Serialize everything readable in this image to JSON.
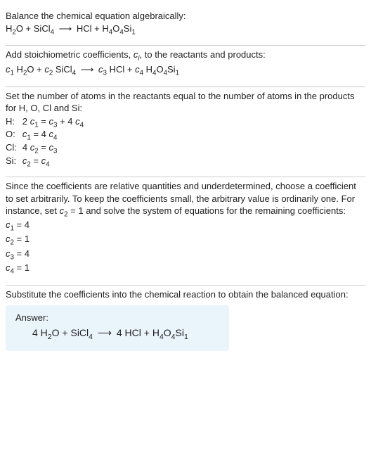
{
  "section1": {
    "title": "Balance the chemical equation algebraically:",
    "equation_html": "H<span class='sub'>2</span>O + SiCl<span class='sub'>4</span> <span class='arrow'>⟶</span> HCl + H<span class='sub'>4</span>O<span class='sub'>4</span>Si<span class='sub'>1</span>"
  },
  "section2": {
    "text_html": "Add stoichiometric coefficients, <span class='ital'>c<span class='sub'>i</span></span>, to the reactants and products:",
    "equation_html": "<span class='ital'>c</span><span class='sub'>1</span> H<span class='sub'>2</span>O + <span class='ital'>c</span><span class='sub'>2</span> SiCl<span class='sub'>4</span> <span class='arrow'>⟶</span> <span class='ital'>c</span><span class='sub'>3</span> HCl + <span class='ital'>c</span><span class='sub'>4</span> H<span class='sub'>4</span>O<span class='sub'>4</span>Si<span class='sub'>1</span>"
  },
  "section3": {
    "text": "Set the number of atoms in the reactants equal to the number of atoms in the products for H, O, Cl and Si:",
    "rows": [
      {
        "label": "H:",
        "eq_html": "2 <span class='ital'>c</span><span class='sub'>1</span> = <span class='ital'>c</span><span class='sub'>3</span> + 4 <span class='ital'>c</span><span class='sub'>4</span>"
      },
      {
        "label": "O:",
        "eq_html": "<span class='ital'>c</span><span class='sub'>1</span> = 4 <span class='ital'>c</span><span class='sub'>4</span>"
      },
      {
        "label": "Cl:",
        "eq_html": "4 <span class='ital'>c</span><span class='sub'>2</span> = <span class='ital'>c</span><span class='sub'>3</span>"
      },
      {
        "label": "Si:",
        "eq_html": "<span class='ital'>c</span><span class='sub'>2</span> = <span class='ital'>c</span><span class='sub'>4</span>"
      }
    ]
  },
  "section4": {
    "text_html": "Since the coefficients are relative quantities and underdetermined, choose a coefficient to set arbitrarily. To keep the coefficients small, the arbitrary value is ordinarily one. For instance, set <span class='ital'>c</span><span class='sub'>2</span> = 1 and solve the system of equations for the remaining coefficients:",
    "coeffs": [
      "<span class='ital'>c</span><span class='sub'>1</span> = 4",
      "<span class='ital'>c</span><span class='sub'>2</span> = 1",
      "<span class='ital'>c</span><span class='sub'>3</span> = 4",
      "<span class='ital'>c</span><span class='sub'>4</span> = 1"
    ]
  },
  "section5": {
    "text": "Substitute the coefficients into the chemical reaction to obtain the balanced equation:",
    "answer_label": "Answer:",
    "answer_html": "4 H<span class='sub'>2</span>O + SiCl<span class='sub'>4</span> <span class='arrow'>⟶</span> 4 HCl + H<span class='sub'>4</span>O<span class='sub'>4</span>Si<span class='sub'>1</span>"
  },
  "colors": {
    "answer_bg": "#eaf4fb",
    "hr": "#cccccc",
    "text": "#222222"
  }
}
